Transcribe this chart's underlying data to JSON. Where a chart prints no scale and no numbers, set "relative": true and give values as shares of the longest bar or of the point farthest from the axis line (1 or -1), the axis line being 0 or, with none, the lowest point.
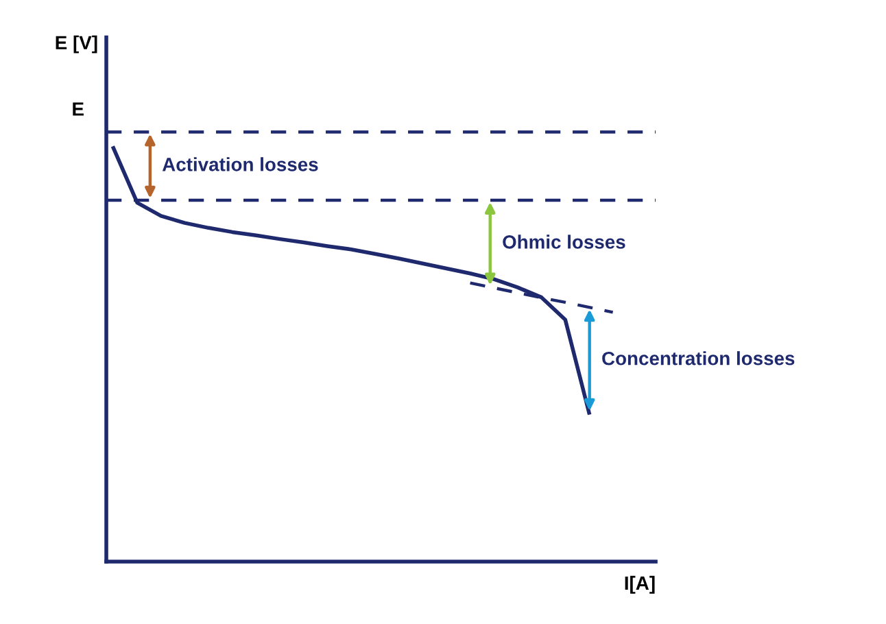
{
  "chart_data": {
    "type": "line",
    "relative": true,
    "xlabel": "I[A]",
    "categories": [
      null,
      null,
      null,
      null,
      null,
      null,
      null,
      null,
      null,
      null,
      null,
      null,
      null,
      null,
      null,
      null,
      null,
      null,
      null,
      null,
      null,
      null,
      null
    ],
    "series": [
      {
        "color": "#1f2a6e",
        "line_style": "solid",
        "values": [
          1.0,
          0.868,
          0.836,
          0.819,
          0.807,
          0.797,
          0.789,
          0.78,
          0.772,
          0.763,
          0.755,
          0.744,
          0.733,
          0.721,
          0.709,
          0.697,
          0.683,
          0.663,
          0.639,
          0.585,
          0.36,
          null,
          null
        ]
      },
      {
        "color": "#1f2a6e",
        "line_style": "dashed",
        "values": [
          null,
          null,
          null,
          null,
          null,
          null,
          null,
          null,
          null,
          null,
          null,
          null,
          null,
          null,
          null,
          0.674,
          0.662,
          0.65,
          0.638,
          0.627,
          0.615,
          0.603,
          null
        ]
      }
    ],
    "ref_lines": [
      {
        "axis": "y",
        "value": 1.039,
        "label": "E",
        "color": "#1f2a6e",
        "line_style": "dashed"
      },
      {
        "axis": "y",
        "value": 0.874,
        "label": null,
        "color": "#1f2a6e",
        "line_style": "dashed"
      }
    ],
    "annotations": [
      "Activation losses",
      "Ohmic losses",
      "Concentration losses",
      "E [V]"
    ]
  }
}
